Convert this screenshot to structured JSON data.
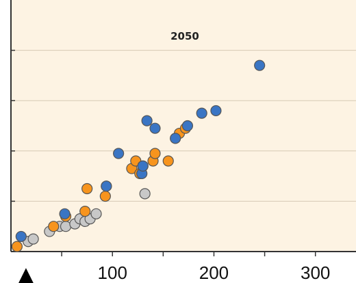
{
  "chart_data": {
    "type": "scatter",
    "title": "2050",
    "xlabel": "",
    "ylabel": "",
    "xlim": [
      0,
      340
    ],
    "ylim": [
      0,
      100
    ],
    "x_ticks": [
      100,
      200,
      300
    ],
    "x_tick_labels": [
      "100",
      "200",
      "300"
    ],
    "y_tick_values": [
      20,
      40,
      60,
      80
    ],
    "grid": "horizontal",
    "background": "#fdf3e3",
    "marker_glyph": "▲",
    "series": [
      {
        "color": "#c8c8c8",
        "points": [
          [
            17,
            4
          ],
          [
            22,
            5
          ],
          [
            38,
            8
          ],
          [
            48,
            10
          ],
          [
            54,
            10
          ],
          [
            63,
            11
          ],
          [
            68,
            13
          ],
          [
            73,
            12
          ],
          [
            78,
            13
          ],
          [
            84,
            15
          ],
          [
            132,
            23
          ]
        ]
      },
      {
        "color": "#f7941d",
        "points": [
          [
            6,
            2
          ],
          [
            42,
            10
          ],
          [
            54,
            14
          ],
          [
            73,
            16
          ],
          [
            75,
            25
          ],
          [
            93,
            22
          ],
          [
            94,
            26
          ],
          [
            119,
            33
          ],
          [
            123,
            36
          ],
          [
            127,
            31
          ],
          [
            130,
            34
          ],
          [
            140,
            36
          ],
          [
            142,
            39
          ],
          [
            155,
            36
          ],
          [
            166,
            47
          ],
          [
            172,
            49
          ]
        ]
      },
      {
        "color": "#3a75c4",
        "points": [
          [
            10,
            6
          ],
          [
            53,
            15
          ],
          [
            94,
            26
          ],
          [
            106,
            39
          ],
          [
            129,
            31
          ],
          [
            130,
            34
          ],
          [
            134,
            52
          ],
          [
            142,
            49
          ],
          [
            162,
            45
          ],
          [
            174,
            50
          ],
          [
            188,
            55
          ],
          [
            202,
            56
          ],
          [
            245,
            74
          ]
        ]
      }
    ]
  }
}
